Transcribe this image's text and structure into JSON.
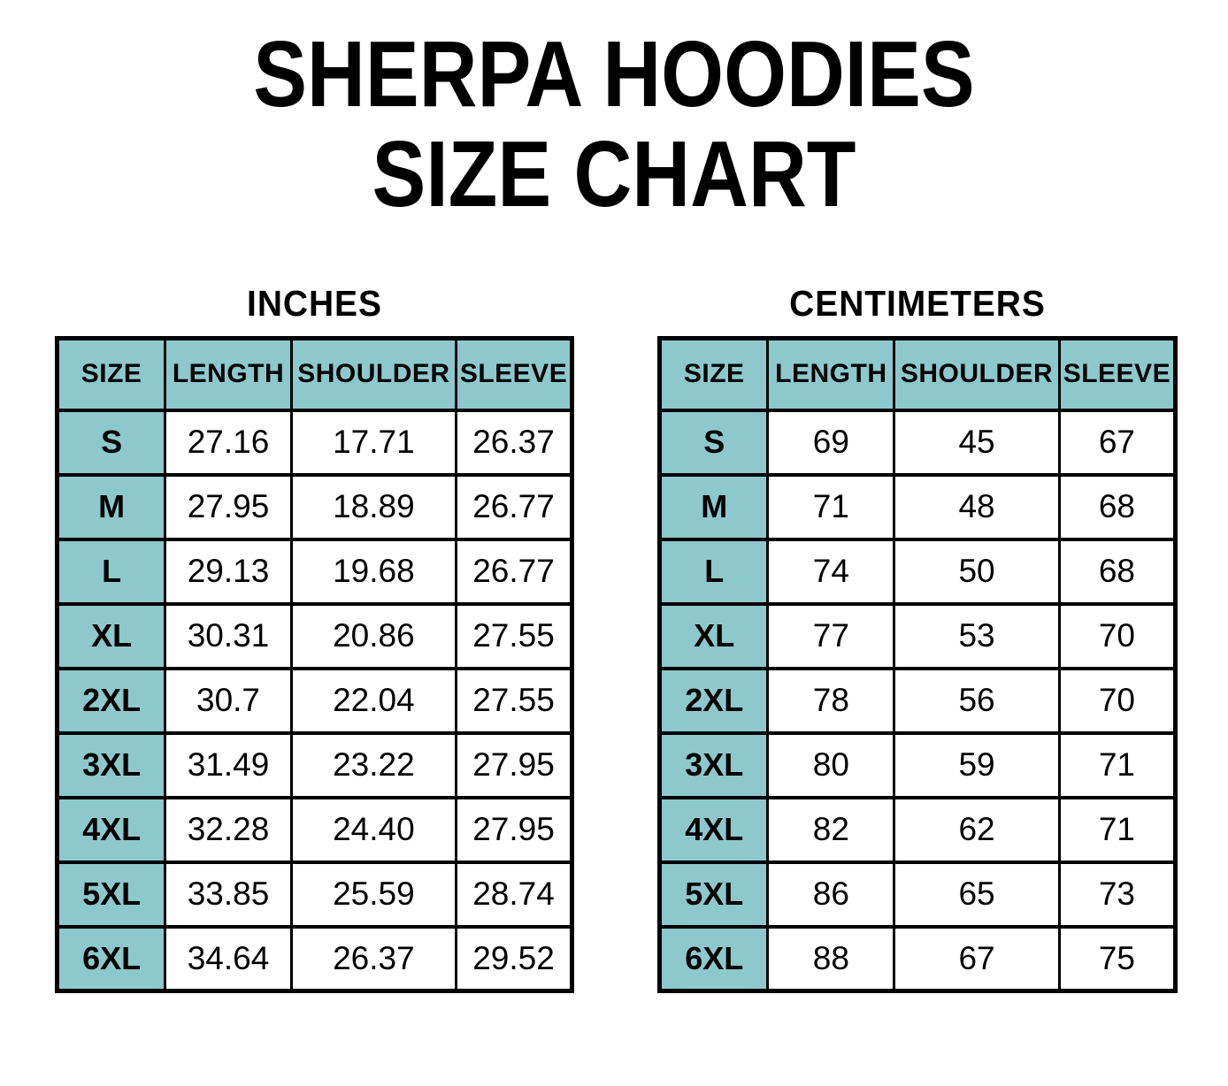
{
  "title": {
    "line1": "SHERPA HOODIES",
    "line2": "SIZE CHART"
  },
  "colors": {
    "header_bg": "#8DC8CD",
    "border": "#000000",
    "background": "#FFFFFF",
    "text": "#000000"
  },
  "tables": [
    {
      "heading": "INCHES",
      "columns": [
        "SIZE",
        "LENGTH",
        "SHOULDER",
        "SLEEVE"
      ],
      "rows": [
        {
          "size": "S",
          "length": "27.16",
          "shoulder": "17.71",
          "sleeve": "26.37"
        },
        {
          "size": "M",
          "length": "27.95",
          "shoulder": "18.89",
          "sleeve": "26.77"
        },
        {
          "size": "L",
          "length": "29.13",
          "shoulder": "19.68",
          "sleeve": "26.77"
        },
        {
          "size": "XL",
          "length": "30.31",
          "shoulder": "20.86",
          "sleeve": "27.55"
        },
        {
          "size": "2XL",
          "length": "30.7",
          "shoulder": "22.04",
          "sleeve": "27.55"
        },
        {
          "size": "3XL",
          "length": "31.49",
          "shoulder": "23.22",
          "sleeve": "27.95"
        },
        {
          "size": "4XL",
          "length": "32.28",
          "shoulder": "24.40",
          "sleeve": "27.95"
        },
        {
          "size": "5XL",
          "length": "33.85",
          "shoulder": "25.59",
          "sleeve": "28.74"
        },
        {
          "size": "6XL",
          "length": "34.64",
          "shoulder": "26.37",
          "sleeve": "29.52"
        }
      ]
    },
    {
      "heading": "CENTIMETERS",
      "columns": [
        "SIZE",
        "LENGTH",
        "SHOULDER",
        "SLEEVE"
      ],
      "rows": [
        {
          "size": "S",
          "length": "69",
          "shoulder": "45",
          "sleeve": "67"
        },
        {
          "size": "M",
          "length": "71",
          "shoulder": "48",
          "sleeve": "68"
        },
        {
          "size": "L",
          "length": "74",
          "shoulder": "50",
          "sleeve": "68"
        },
        {
          "size": "XL",
          "length": "77",
          "shoulder": "53",
          "sleeve": "70"
        },
        {
          "size": "2XL",
          "length": "78",
          "shoulder": "56",
          "sleeve": "70"
        },
        {
          "size": "3XL",
          "length": "80",
          "shoulder": "59",
          "sleeve": "71"
        },
        {
          "size": "4XL",
          "length": "82",
          "shoulder": "62",
          "sleeve": "71"
        },
        {
          "size": "5XL",
          "length": "86",
          "shoulder": "65",
          "sleeve": "73"
        },
        {
          "size": "6XL",
          "length": "88",
          "shoulder": "67",
          "sleeve": "75"
        }
      ]
    }
  ],
  "chart_data": [
    {
      "type": "table",
      "title": "SHERPA HOODIES SIZE CHART — INCHES",
      "columns": [
        "SIZE",
        "LENGTH",
        "SHOULDER",
        "SLEEVE"
      ],
      "rows": [
        [
          "S",
          27.16,
          17.71,
          26.37
        ],
        [
          "M",
          27.95,
          18.89,
          26.77
        ],
        [
          "L",
          29.13,
          19.68,
          26.77
        ],
        [
          "XL",
          30.31,
          20.86,
          27.55
        ],
        [
          "2XL",
          30.7,
          22.04,
          27.55
        ],
        [
          "3XL",
          31.49,
          23.22,
          27.95
        ],
        [
          "4XL",
          32.28,
          24.4,
          27.95
        ],
        [
          "5XL",
          33.85,
          25.59,
          28.74
        ],
        [
          "6XL",
          34.64,
          26.37,
          29.52
        ]
      ]
    },
    {
      "type": "table",
      "title": "SHERPA HOODIES SIZE CHART — CENTIMETERS",
      "columns": [
        "SIZE",
        "LENGTH",
        "SHOULDER",
        "SLEEVE"
      ],
      "rows": [
        [
          "S",
          69,
          45,
          67
        ],
        [
          "M",
          71,
          48,
          68
        ],
        [
          "L",
          74,
          50,
          68
        ],
        [
          "XL",
          77,
          53,
          70
        ],
        [
          "2XL",
          78,
          56,
          70
        ],
        [
          "3XL",
          80,
          59,
          71
        ],
        [
          "4XL",
          82,
          62,
          71
        ],
        [
          "5XL",
          86,
          65,
          73
        ],
        [
          "6XL",
          88,
          67,
          75
        ]
      ]
    }
  ]
}
